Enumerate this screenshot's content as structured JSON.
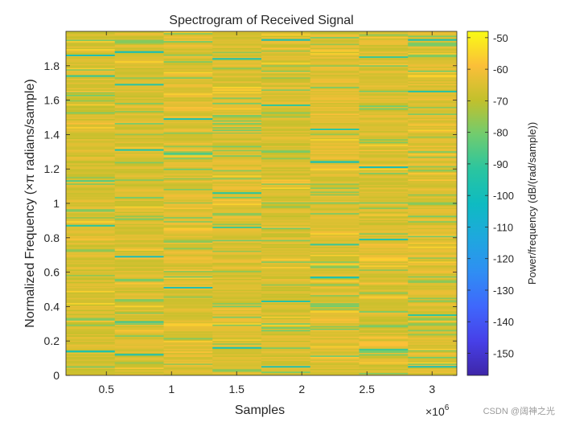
{
  "chart_data": {
    "type": "heatmap",
    "title": "Spectrogram of Received Signal",
    "xlabel": "Samples",
    "ylabel": "Normalized Frequency (×π radians/sample)",
    "x_exponent_label": "×10",
    "x_exponent_power": "6",
    "x_range": [
      0.19,
      3.19
    ],
    "x_ticks": [
      0.5,
      1,
      1.5,
      2,
      2.5,
      3
    ],
    "x_tick_labels": [
      "0.5",
      "1",
      "1.5",
      "2",
      "2.5",
      "3"
    ],
    "y_range": [
      0,
      2
    ],
    "y_ticks": [
      0,
      0.2,
      0.4,
      0.6,
      0.8,
      1,
      1.2,
      1.4,
      1.6,
      1.8
    ],
    "y_tick_labels": [
      "0",
      "0.2",
      "0.4",
      "0.6",
      "0.8",
      "1",
      "1.2",
      "1.4",
      "1.6",
      "1.8"
    ],
    "time_segments": 8,
    "frequency_bins": 256,
    "typical_power_db": -65,
    "colorbar": {
      "label": "Power/frequency (dB/(rad/sample))",
      "range_db": [
        -157,
        -48
      ],
      "ticks": [
        -50,
        -60,
        -70,
        -80,
        -90,
        -100,
        -110,
        -120,
        -130,
        -140,
        -150
      ],
      "tick_labels": [
        "-50",
        "-60",
        "-70",
        "-80",
        "-90",
        "-100",
        "-110",
        "-120",
        "-130",
        "-140",
        "-150"
      ]
    },
    "notable_low_power_lines": [
      {
        "segment": 1,
        "freq": 1.86,
        "power_db": -98
      },
      {
        "segment": 1,
        "freq": 1.74,
        "power_db": -90
      },
      {
        "segment": 1,
        "freq": 1.13,
        "power_db": -86
      },
      {
        "segment": 1,
        "freq": 0.87,
        "power_db": -92
      },
      {
        "segment": 1,
        "freq": 0.14,
        "power_db": -96
      },
      {
        "segment": 2,
        "freq": 1.88,
        "power_db": -100
      },
      {
        "segment": 2,
        "freq": 1.69,
        "power_db": -94
      },
      {
        "segment": 2,
        "freq": 1.31,
        "power_db": -96
      },
      {
        "segment": 2,
        "freq": 0.69,
        "power_db": -99
      },
      {
        "segment": 2,
        "freq": 0.31,
        "power_db": -90
      },
      {
        "segment": 2,
        "freq": 0.12,
        "power_db": -97
      },
      {
        "segment": 3,
        "freq": 1.49,
        "power_db": -98
      },
      {
        "segment": 3,
        "freq": 0.51,
        "power_db": -99
      },
      {
        "segment": 3,
        "freq": 1.29,
        "power_db": -86
      },
      {
        "segment": 4,
        "freq": 1.84,
        "power_db": -96
      },
      {
        "segment": 4,
        "freq": 1.06,
        "power_db": -92
      },
      {
        "segment": 4,
        "freq": 0.16,
        "power_db": -97
      },
      {
        "segment": 4,
        "freq": 0.86,
        "power_db": -88
      },
      {
        "segment": 5,
        "freq": 1.95,
        "power_db": -98
      },
      {
        "segment": 5,
        "freq": 1.57,
        "power_db": -90
      },
      {
        "segment": 5,
        "freq": 0.43,
        "power_db": -94
      },
      {
        "segment": 5,
        "freq": 0.05,
        "power_db": -96
      },
      {
        "segment": 6,
        "freq": 1.43,
        "power_db": -92
      },
      {
        "segment": 6,
        "freq": 1.24,
        "power_db": -99
      },
      {
        "segment": 6,
        "freq": 0.76,
        "power_db": -90
      },
      {
        "segment": 6,
        "freq": 0.57,
        "power_db": -96
      },
      {
        "segment": 7,
        "freq": 1.85,
        "power_db": -90
      },
      {
        "segment": 7,
        "freq": 1.21,
        "power_db": -99
      },
      {
        "segment": 7,
        "freq": 0.79,
        "power_db": -96
      },
      {
        "segment": 7,
        "freq": 0.15,
        "power_db": -88
      },
      {
        "segment": 8,
        "freq": 1.95,
        "power_db": -98
      },
      {
        "segment": 8,
        "freq": 1.65,
        "power_db": -94
      },
      {
        "segment": 8,
        "freq": 0.35,
        "power_db": -92
      },
      {
        "segment": 8,
        "freq": 0.05,
        "power_db": -99
      }
    ]
  },
  "watermark": "CSDN @阔神之光"
}
